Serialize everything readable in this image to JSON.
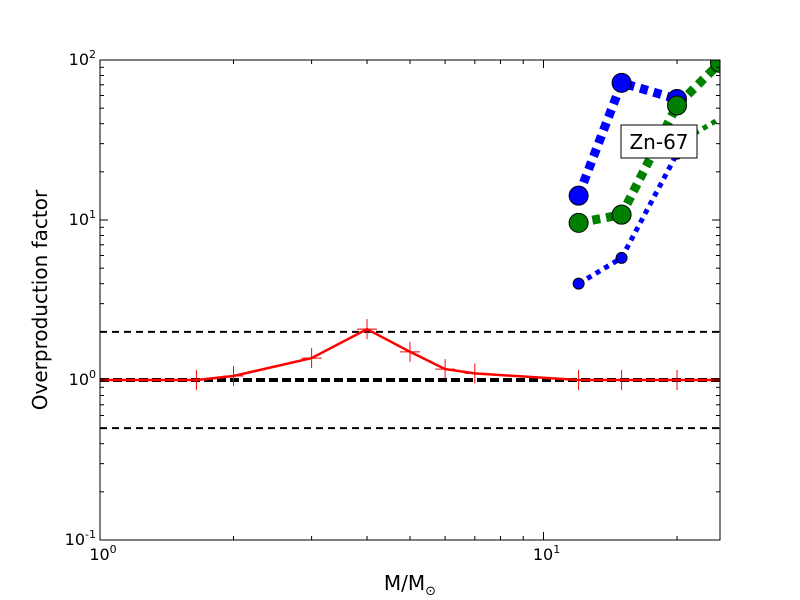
{
  "chart_data": {
    "type": "line",
    "xscale": "log",
    "yscale": "log",
    "xlim": [
      1,
      25
    ],
    "ylim": [
      0.1,
      100
    ],
    "xlabel": "M/M",
    "xlabel_sub": "⊙",
    "ylabel": "Overproduction factor",
    "x_ticks": [
      {
        "base": "10",
        "exp": "0",
        "value": 1
      },
      {
        "base": "10",
        "exp": "1",
        "value": 10
      }
    ],
    "y_ticks": [
      {
        "base": "10",
        "exp": "-1",
        "value": 0.1
      },
      {
        "base": "10",
        "exp": "0",
        "value": 1
      },
      {
        "base": "10",
        "exp": "1",
        "value": 10
      },
      {
        "base": "10",
        "exp": "2",
        "value": 100
      }
    ],
    "annotation": "Zn-67",
    "reference_lines": [
      {
        "y": 2.0,
        "color": "#000000",
        "style": "dashed",
        "width": 2
      },
      {
        "y": 1.0,
        "color": "#000000",
        "style": "dashed",
        "width": 4
      },
      {
        "y": 0.5,
        "color": "#000000",
        "style": "dashed",
        "width": 2
      }
    ],
    "series": [
      {
        "color": "#ff0000",
        "style": "solid",
        "marker": "plus",
        "x": [
          1.0,
          1.65,
          2.0,
          3.0,
          4.0,
          5.0,
          6.0,
          7.0,
          12.0,
          15.0,
          20.0,
          25.0
        ],
        "y": [
          1.0,
          1.0,
          1.06,
          1.37,
          2.08,
          1.5,
          1.17,
          1.1,
          1.0,
          1.0,
          1.0,
          1.0
        ]
      },
      {
        "color": "#0000ff",
        "style": "dotted-thick",
        "marker": "circle-large",
        "x": [
          12.0,
          15.0,
          20.0
        ],
        "y": [
          14.2,
          72.0,
          57.0
        ]
      },
      {
        "color": "#0000ff",
        "style": "dotted-thin",
        "marker": "circle-small",
        "x": [
          12.0,
          15.0,
          20.0
        ],
        "y": [
          4.0,
          5.8,
          26.0
        ]
      },
      {
        "color": "#008000",
        "style": "dotted-thick",
        "marker": "circle-large",
        "x": [
          12.0,
          15.0,
          20.0,
          25.0
        ],
        "y": [
          9.6,
          10.8,
          52.0,
          96.0
        ]
      },
      {
        "color": "#008000",
        "style": "dotted-thin",
        "marker": "none",
        "x": [
          20.0,
          25.0
        ],
        "y": [
          30.0,
          43.0
        ]
      }
    ]
  }
}
